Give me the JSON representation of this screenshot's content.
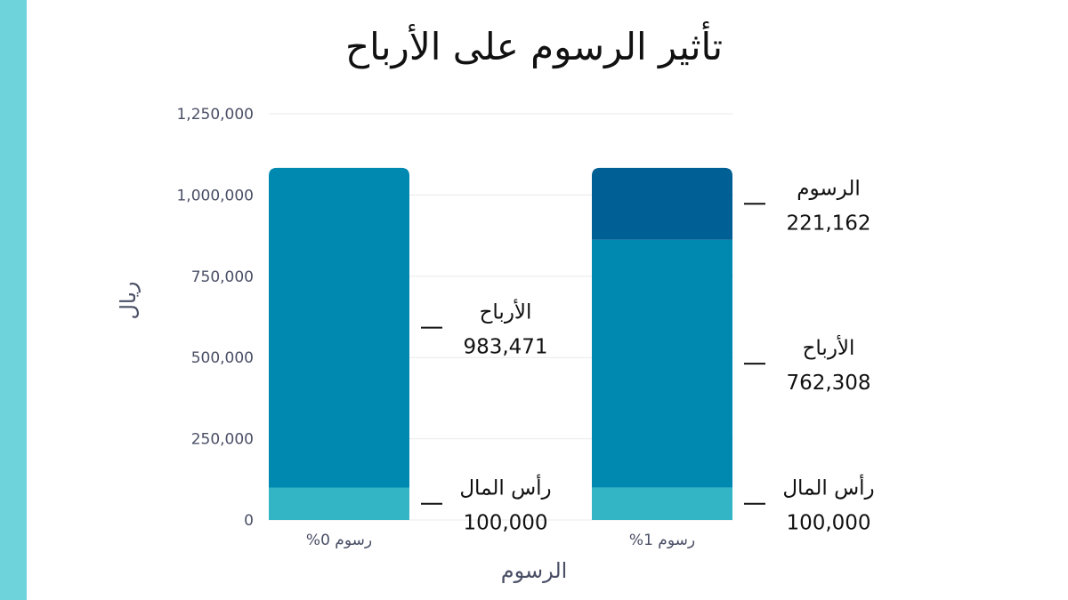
{
  "colors": {
    "side_bar": "#6fd3dc",
    "capital": "#33b5c6",
    "profits": "#0089b0",
    "fees": "#005f94",
    "grid": "#e8eaed"
  },
  "chart_data": {
    "type": "bar",
    "stacked": true,
    "title": "تأثير الرسوم على الأرباح",
    "xlabel": "الرسوم",
    "ylabel": "ريال",
    "ylim": [
      0,
      1250000
    ],
    "yticks": [
      0,
      250000,
      500000,
      750000,
      1000000,
      1250000
    ],
    "ytick_labels": [
      "0",
      "250,000",
      "500,000",
      "750,000",
      "1,000,000",
      "1,250,000"
    ],
    "categories": [
      "رسوم 0%",
      "رسوم 1%"
    ],
    "series": [
      {
        "name": "رأس المال",
        "color_key": "capital",
        "values": [
          100000,
          100000
        ],
        "value_labels": [
          "100,000",
          "100,000"
        ]
      },
      {
        "name": "الأرباح",
        "color_key": "profits",
        "values": [
          983471,
          762308
        ],
        "value_labels": [
          "983,471",
          "762,308"
        ]
      },
      {
        "name": "الرسوم",
        "color_key": "fees",
        "values": [
          0,
          221162
        ],
        "value_labels": [
          "",
          "221,162"
        ]
      }
    ]
  }
}
